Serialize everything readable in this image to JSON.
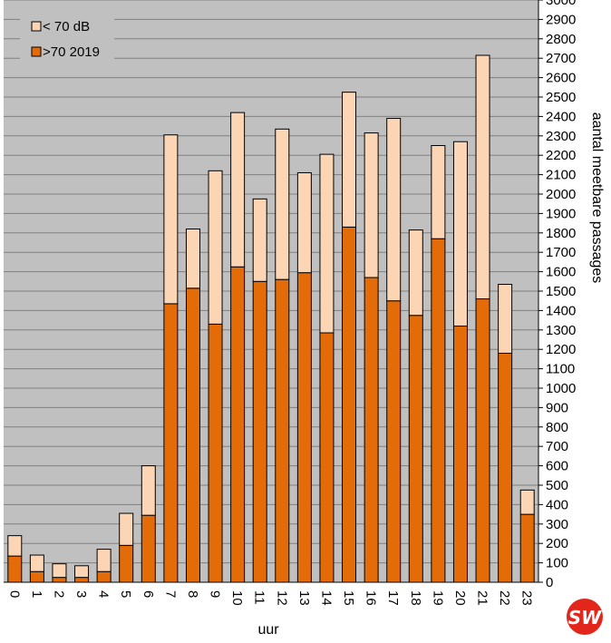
{
  "chart_data": {
    "type": "bar",
    "stacked": true,
    "categories": [
      "0",
      "1",
      "2",
      "3",
      "4",
      "5",
      "6",
      "7",
      "8",
      "9",
      "10",
      "11",
      "12",
      "13",
      "14",
      "15",
      "16",
      "17",
      "18",
      "19",
      "20",
      "21",
      "22",
      "23"
    ],
    "series": [
      {
        "name": ">70 2019",
        "color": "#e36c09",
        "values": [
          135,
          55,
          25,
          25,
          55,
          190,
          345,
          1435,
          1515,
          1330,
          1625,
          1550,
          1560,
          1595,
          1285,
          1830,
          1570,
          1450,
          1375,
          1770,
          1320,
          1460,
          1180,
          350
        ]
      },
      {
        "name": "< 70 dB",
        "color": "#fcd5b4",
        "values": [
          105,
          85,
          70,
          60,
          115,
          165,
          255,
          870,
          305,
          790,
          795,
          425,
          775,
          515,
          920,
          695,
          745,
          940,
          440,
          480,
          950,
          1255,
          355,
          125
        ]
      }
    ],
    "xlabel": "uur",
    "ylabel": "aantal meetbare passages",
    "ylim": [
      0,
      3000
    ],
    "ytick_step": 100,
    "grid": true,
    "legend_position": "top-left",
    "plot_background": "#c0c0c0"
  },
  "logo": {
    "text": "SW",
    "color": "#e2261c"
  }
}
